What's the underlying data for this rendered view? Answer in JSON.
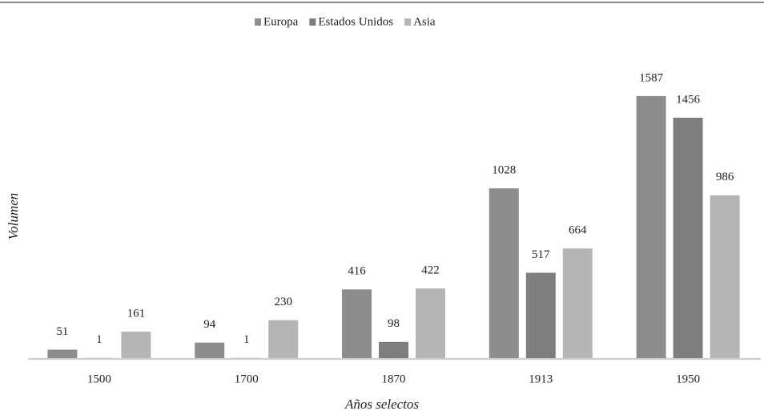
{
  "chart_data": {
    "type": "bar",
    "categories": [
      "1500",
      "1700",
      "1870",
      "1913",
      "1950"
    ],
    "series": [
      {
        "name": "Europa",
        "color": "#8d8d8f",
        "values": [
          51,
          94,
          416,
          1028,
          1587
        ]
      },
      {
        "name": "Estados Unidos",
        "color": "#7e7e80",
        "values": [
          1,
          1,
          98,
          517,
          1456
        ]
      },
      {
        "name": "Asia",
        "color": "#b5b5b7",
        "values": [
          161,
          230,
          422,
          664,
          986
        ]
      }
    ],
    "xlabel": "Años selectos",
    "ylabel": "Volumen",
    "ylim": [
      0,
      1800
    ],
    "legend": "top",
    "grid": false
  }
}
